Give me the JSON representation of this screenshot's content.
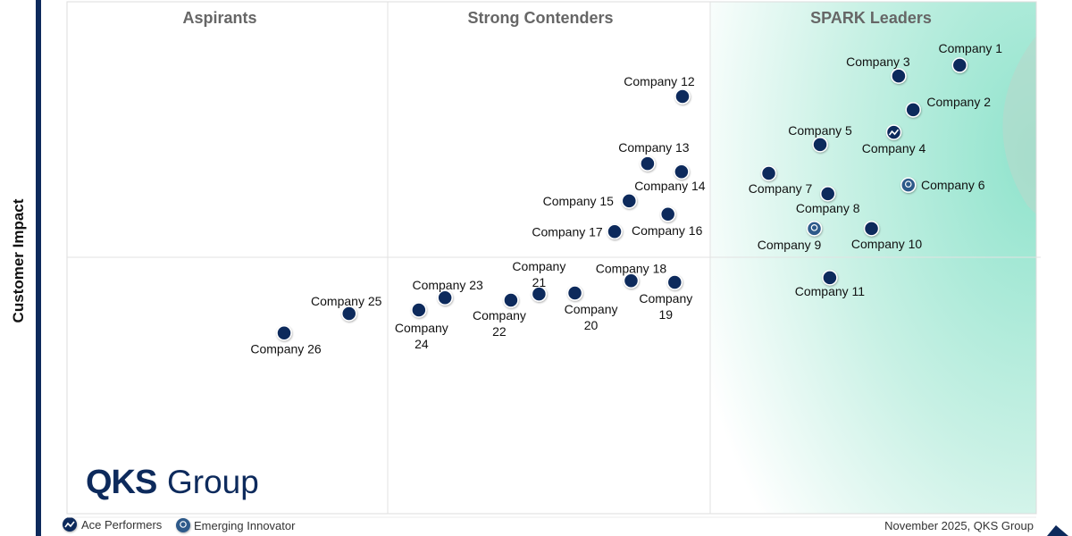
{
  "chart_data": {
    "type": "scatter",
    "title": "",
    "xlabel": "",
    "ylabel": "Customer Impact",
    "xlim": [
      0,
      100
    ],
    "ylim": [
      0,
      100
    ],
    "grid": false,
    "quadrants": [
      "Aspirants",
      "Strong Contenders",
      "SPARK Leaders"
    ],
    "legend": {
      "placement": "bottom-left",
      "items": [
        {
          "name": "Ace Performers",
          "icon": "trend-up-icon"
        },
        {
          "name": "Emerging Innovator",
          "icon": "lightbulb-icon"
        }
      ]
    },
    "points": [
      {
        "label": "Company 1",
        "x": 92.1,
        "y": 87.6,
        "type": "standard"
      },
      {
        "label": "Company 2",
        "x": 87.3,
        "y": 78.9,
        "type": "standard"
      },
      {
        "label": "Company 3",
        "x": 85.8,
        "y": 85.5,
        "type": "standard"
      },
      {
        "label": "Company 4",
        "x": 85.3,
        "y": 74.5,
        "type": "ace"
      },
      {
        "label": "Company 5",
        "x": 77.7,
        "y": 72.1,
        "type": "standard"
      },
      {
        "label": "Company 6",
        "x": 86.8,
        "y": 64.2,
        "type": "emerging"
      },
      {
        "label": "Company 7",
        "x": 72.4,
        "y": 66.5,
        "type": "standard"
      },
      {
        "label": "Company 8",
        "x": 78.5,
        "y": 62.5,
        "type": "standard"
      },
      {
        "label": "Company 9",
        "x": 77.1,
        "y": 55.7,
        "type": "emerging"
      },
      {
        "label": "Company 10",
        "x": 83.0,
        "y": 55.7,
        "type": "standard"
      },
      {
        "label": "Company 11",
        "x": 78.7,
        "y": 46.1,
        "type": "standard"
      },
      {
        "label": "Company 12",
        "x": 63.5,
        "y": 81.5,
        "type": "standard"
      },
      {
        "label": "Company 13",
        "x": 59.9,
        "y": 68.4,
        "type": "standard"
      },
      {
        "label": "Company 14",
        "x": 63.4,
        "y": 66.8,
        "type": "standard"
      },
      {
        "label": "Company 15",
        "x": 58.0,
        "y": 61.1,
        "type": "standard"
      },
      {
        "label": "Company 16",
        "x": 62.0,
        "y": 58.5,
        "type": "standard"
      },
      {
        "label": "Company 17",
        "x": 56.5,
        "y": 55.1,
        "type": "standard"
      },
      {
        "label": "Company 18",
        "x": 58.2,
        "y": 45.5,
        "type": "standard"
      },
      {
        "label": "Company 19",
        "x": 62.7,
        "y": 45.2,
        "type": "standard"
      },
      {
        "label": "Company 20",
        "x": 52.4,
        "y": 43.1,
        "type": "standard"
      },
      {
        "label": "Company 21",
        "x": 48.7,
        "y": 42.9,
        "type": "standard"
      },
      {
        "label": "Company 22",
        "x": 45.8,
        "y": 41.7,
        "type": "standard"
      },
      {
        "label": "Company 23",
        "x": 39.0,
        "y": 42.2,
        "type": "standard"
      },
      {
        "label": "Company 24",
        "x": 36.3,
        "y": 39.8,
        "type": "standard"
      },
      {
        "label": "Company 25",
        "x": 29.1,
        "y": 39.1,
        "type": "standard"
      },
      {
        "label": "Company 26",
        "x": 22.4,
        "y": 35.3,
        "type": "standard"
      }
    ],
    "colors": {
      "point": "#0d2a5c",
      "emerging": "#2e5a8a",
      "leaders_fill": "#a8ead8",
      "brand": "#0d2a5c"
    }
  },
  "branding": {
    "logo_bold": "QKS",
    "logo_light": "Group"
  },
  "footer": {
    "date_source": "November 2025, QKS Group"
  }
}
